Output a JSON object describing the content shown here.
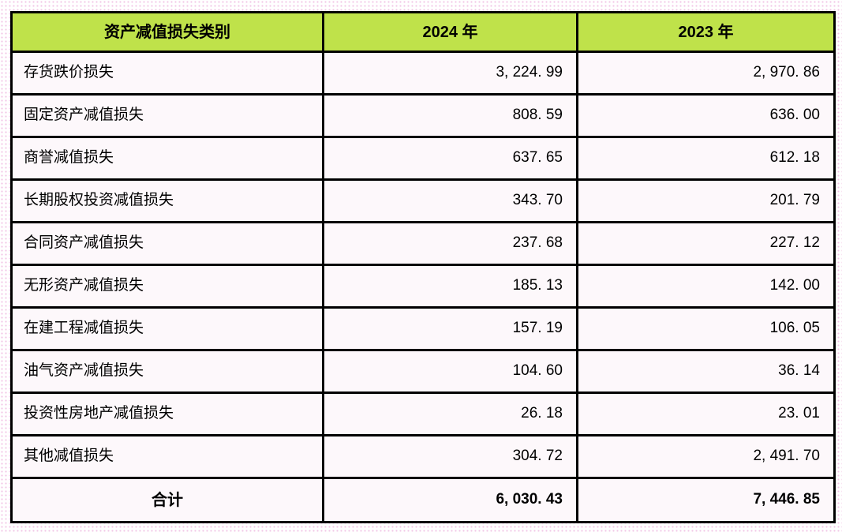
{
  "colors": {
    "header_bg": "#bfe24a",
    "border": "#000000",
    "cell_bg": "#fdf8fb",
    "page_dot": "#f2c4e6"
  },
  "table": {
    "header": {
      "category": "资产减值损失类别",
      "col2024": "2024 年",
      "col2023": "2023 年"
    },
    "rows": [
      {
        "label": "存货跌价损失",
        "y2024": "3, 224. 99",
        "y2023": "2, 970. 86"
      },
      {
        "label": "固定资产减值损失",
        "y2024": "808. 59",
        "y2023": "636. 00"
      },
      {
        "label": "商誉减值损失",
        "y2024": "637. 65",
        "y2023": "612. 18"
      },
      {
        "label": "长期股权投资减值损失",
        "y2024": "343. 70",
        "y2023": "201. 79"
      },
      {
        "label": "合同资产减值损失",
        "y2024": "237. 68",
        "y2023": "227. 12"
      },
      {
        "label": "无形资产减值损失",
        "y2024": "185. 13",
        "y2023": "142. 00"
      },
      {
        "label": "在建工程减值损失",
        "y2024": "157. 19",
        "y2023": "106. 05"
      },
      {
        "label": "油气资产减值损失",
        "y2024": "104. 60",
        "y2023": "36. 14"
      },
      {
        "label": "投资性房地产减值损失",
        "y2024": "26. 18",
        "y2023": "23. 01"
      },
      {
        "label": "其他减值损失",
        "y2024": "304. 72",
        "y2023": "2, 491. 70"
      }
    ],
    "total": {
      "label": "合计",
      "y2024": "6, 030. 43",
      "y2023": "7, 446. 85"
    }
  }
}
